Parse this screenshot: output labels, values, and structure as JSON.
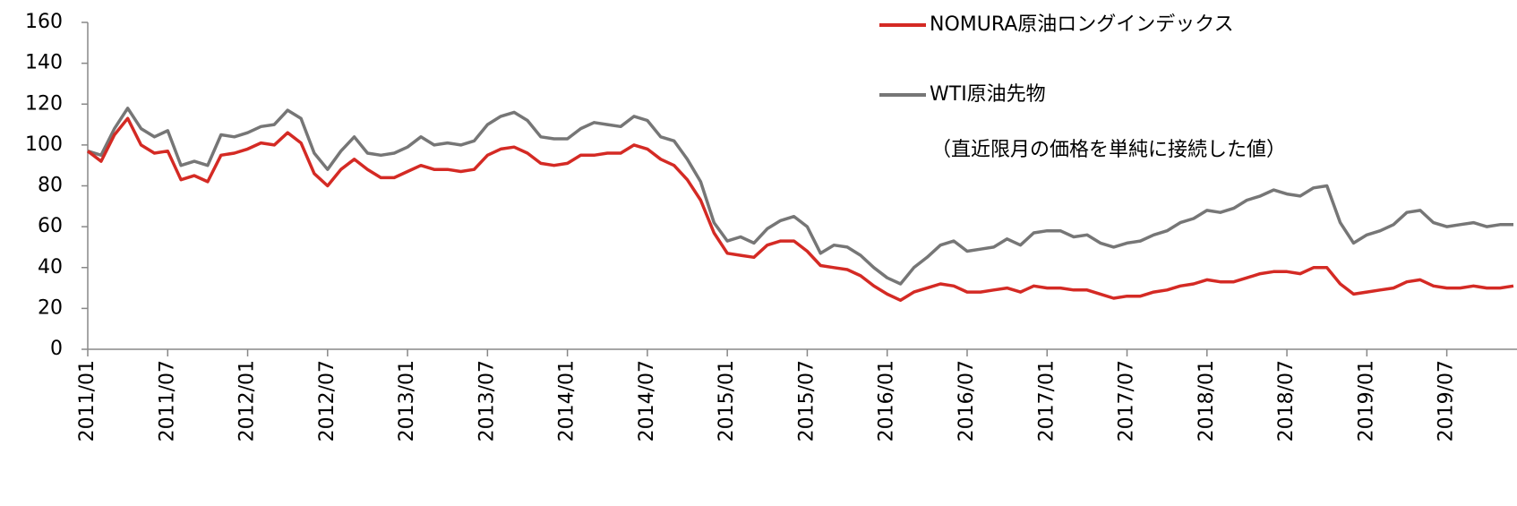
{
  "chart_data": {
    "type": "line",
    "categories": [
      "2011/01",
      null,
      null,
      null,
      null,
      null,
      "2011/07",
      null,
      null,
      null,
      null,
      null,
      "2012/01",
      null,
      null,
      null,
      null,
      null,
      "2012/07",
      null,
      null,
      null,
      null,
      null,
      "2013/01",
      null,
      null,
      null,
      null,
      null,
      "2013/07",
      null,
      null,
      null,
      null,
      null,
      "2014/01",
      null,
      null,
      null,
      null,
      null,
      "2014/07",
      null,
      null,
      null,
      null,
      null,
      "2015/01",
      null,
      null,
      null,
      null,
      null,
      "2015/07",
      null,
      null,
      null,
      null,
      null,
      "2016/01",
      null,
      null,
      null,
      null,
      null,
      "2016/07",
      null,
      null,
      null,
      null,
      null,
      "2017/01",
      null,
      null,
      null,
      null,
      null,
      "2017/07",
      null,
      null,
      null,
      null,
      null,
      "2018/01",
      null,
      null,
      null,
      null,
      null,
      "2018/07",
      null,
      null,
      null,
      null,
      null,
      "2019/01",
      null,
      null,
      null,
      null,
      null,
      "2019/07",
      null,
      null,
      null,
      null,
      null
    ],
    "series": [
      {
        "name": "NOMURA原油ロングインデックス",
        "color": "#d42a24",
        "values": [
          97,
          92,
          105,
          113,
          100,
          96,
          97,
          83,
          85,
          82,
          95,
          96,
          98,
          101,
          100,
          106,
          101,
          86,
          80,
          88,
          93,
          88,
          84,
          84,
          87,
          90,
          88,
          88,
          87,
          88,
          95,
          98,
          99,
          96,
          91,
          90,
          91,
          95,
          95,
          96,
          96,
          100,
          98,
          93,
          90,
          83,
          73,
          57,
          47,
          46,
          45,
          51,
          53,
          53,
          48,
          41,
          40,
          39,
          36,
          31,
          27,
          24,
          28,
          30,
          32,
          31,
          28,
          28,
          29,
          30,
          28,
          31,
          30,
          30,
          29,
          29,
          27,
          25,
          26,
          26,
          28,
          29,
          31,
          32,
          34,
          33,
          33,
          35,
          37,
          38,
          38,
          37,
          40,
          40,
          32,
          27,
          28,
          29,
          30,
          33,
          34,
          31,
          30,
          30,
          31,
          30,
          30,
          31
        ]
      },
      {
        "name": "WTI原油先物",
        "color": "#767676",
        "values": [
          97,
          95,
          108,
          118,
          108,
          104,
          107,
          90,
          92,
          90,
          105,
          104,
          106,
          109,
          110,
          117,
          113,
          96,
          88,
          97,
          104,
          96,
          95,
          96,
          99,
          104,
          100,
          101,
          100,
          102,
          110,
          114,
          116,
          112,
          104,
          103,
          103,
          108,
          111,
          110,
          109,
          114,
          112,
          104,
          102,
          93,
          82,
          62,
          53,
          55,
          52,
          59,
          63,
          65,
          60,
          47,
          51,
          50,
          46,
          40,
          35,
          32,
          40,
          45,
          51,
          53,
          48,
          49,
          50,
          54,
          51,
          57,
          58,
          58,
          55,
          56,
          52,
          50,
          52,
          53,
          56,
          58,
          62,
          64,
          68,
          67,
          69,
          73,
          75,
          78,
          76,
          75,
          79,
          80,
          62,
          52,
          56,
          58,
          61,
          67,
          68,
          62,
          60,
          61,
          62,
          60,
          61,
          61
        ]
      }
    ],
    "annotation": "（直近限月の価格を単純に接続した値）",
    "ylim": [
      0,
      160
    ],
    "yticks": [
      0,
      20,
      40,
      60,
      80,
      100,
      120,
      140,
      160
    ]
  }
}
